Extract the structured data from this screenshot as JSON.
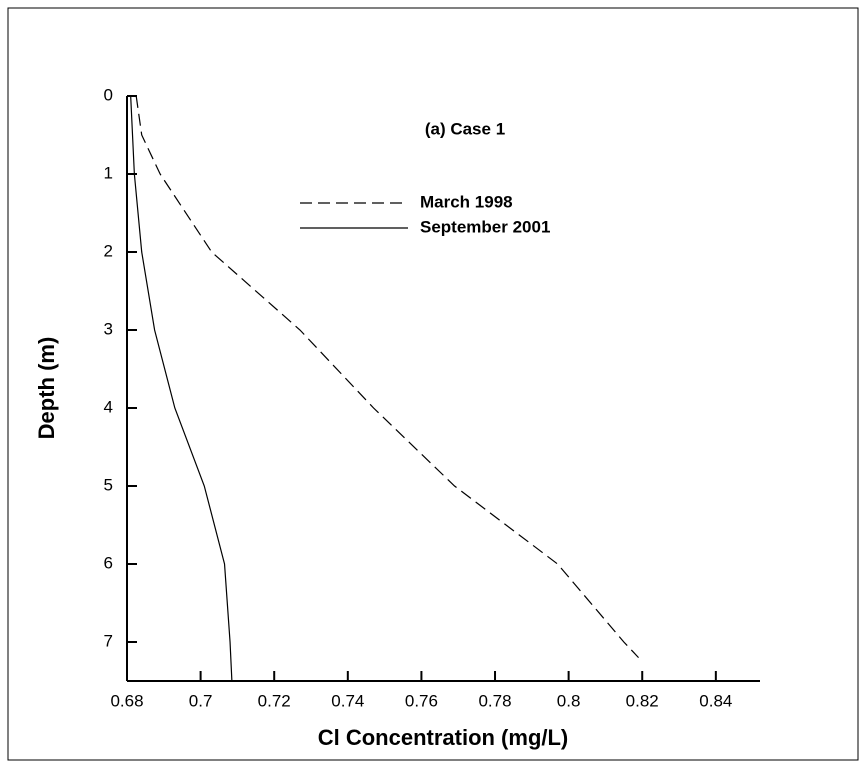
{
  "chart_data": {
    "type": "line",
    "title": "(a) Case 1",
    "x_label": "Cl Concentration (mg/L)",
    "y_label": "Depth (m)",
    "xlim": [
      0.68,
      0.852
    ],
    "ylim": [
      0,
      7.5
    ],
    "y_inverted": true,
    "xticks": [
      0.68,
      0.7,
      0.72,
      0.74,
      0.76,
      0.78,
      0.8,
      0.82,
      0.84
    ],
    "yticks": [
      0,
      1,
      2,
      3,
      4,
      5,
      6,
      7
    ],
    "series": [
      {
        "name": "March 1998",
        "color": "#000000",
        "dash": true,
        "x": [
          0.6825,
          0.684,
          0.689,
          0.703,
          0.727,
          0.747,
          0.769,
          0.797,
          0.815,
          0.819
        ],
        "y": [
          0,
          0.5,
          1,
          2,
          3,
          4,
          5,
          6,
          7,
          7.2
        ]
      },
      {
        "name": "September 2001",
        "color": "#000000",
        "dash": false,
        "x": [
          0.681,
          0.682,
          0.684,
          0.6875,
          0.693,
          0.701,
          0.7065,
          0.708,
          0.7085
        ],
        "y": [
          0,
          1,
          2,
          3,
          4,
          5,
          6,
          7,
          7.5
        ]
      }
    ]
  }
}
